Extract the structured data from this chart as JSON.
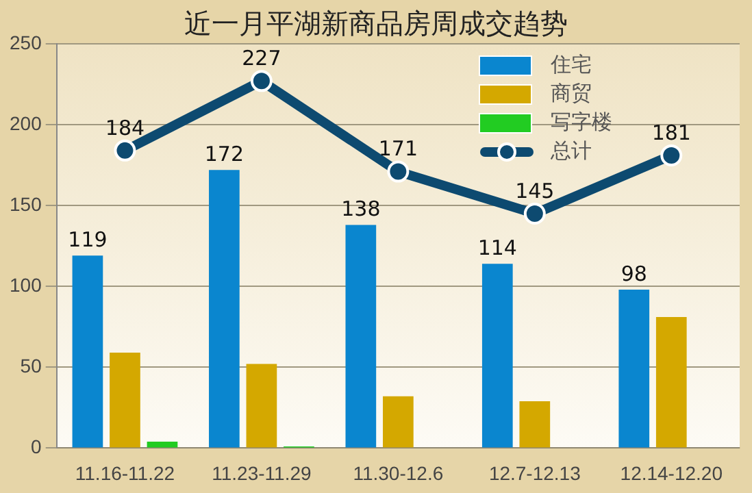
{
  "chart_data": {
    "type": "bar",
    "title": "近一月平湖新商品房周成交趋势",
    "categories": [
      "11.16-11.22",
      "11.23-11.29",
      "11.30-12.6",
      "12.7-12.13",
      "12.14-12.20"
    ],
    "series": [
      {
        "name": "住宅",
        "color": "#0a86cf",
        "values": [
          119,
          172,
          138,
          114,
          98
        ],
        "value_labels": [
          "119",
          "172",
          "138",
          "114",
          "98"
        ]
      },
      {
        "name": "商贸",
        "color": "#d4a800",
        "values": [
          59,
          52,
          32,
          29,
          81
        ]
      },
      {
        "name": "写字楼",
        "color": "#22cc22",
        "values": [
          4,
          1,
          0,
          0,
          0
        ]
      },
      {
        "name": "总计",
        "type": "line",
        "color": "#0d4a70",
        "marker": "circle",
        "line_style": "solid",
        "values": [
          184,
          227,
          171,
          145,
          181
        ],
        "value_labels": [
          "184",
          "227",
          "171",
          "145",
          "181"
        ]
      }
    ],
    "ylim": [
      0,
      250
    ],
    "yticks": [
      0,
      50,
      100,
      150,
      200,
      250
    ],
    "grid": "y",
    "legend": "top right"
  }
}
